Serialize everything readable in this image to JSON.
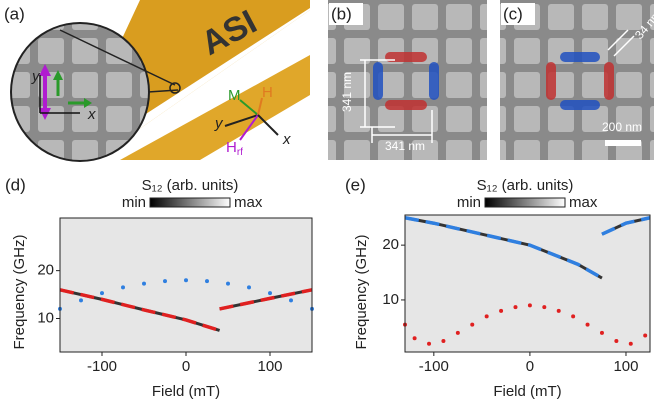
{
  "figure": {
    "a": {
      "label": "(a)",
      "sample": "ASI",
      "inset_y": "y",
      "inset_x": "x",
      "axis_y": "y",
      "axis_x": "x",
      "m": "M",
      "h": "H",
      "hrf_main": "H",
      "hrf_sub": "rf"
    },
    "b": {
      "label": "(b)",
      "dim_v": "341 nm",
      "dim_h": "341 nm"
    },
    "c": {
      "label": "(c)",
      "gap": "34 nm",
      "scale": "200 nm"
    }
  },
  "chart_data": [
    {
      "type": "scatter",
      "panel_label": "(d)",
      "colorbar_title": "S₁₂ (arb. units)",
      "colorbar_min": "min",
      "colorbar_max": "max",
      "xlabel": "Field (mT)",
      "ylabel": "Frequency (GHz)",
      "xlim": [
        -150,
        150
      ],
      "ylim": [
        3,
        31
      ],
      "xticks": [
        -100,
        0,
        100
      ],
      "yticks": [
        10,
        20
      ],
      "series": [
        {
          "style": "dots",
          "color": "#2f7fe0",
          "x": [
            -150,
            -125,
            -100,
            -75,
            -50,
            -25,
            0,
            25,
            50,
            75,
            100,
            125,
            150
          ],
          "values": [
            12,
            13.8,
            15.3,
            16.5,
            17.3,
            17.8,
            18,
            17.8,
            17.3,
            16.5,
            15.3,
            13.8,
            12
          ]
        },
        {
          "style": "dashes",
          "color": "#e02020",
          "x": [
            -150,
            -100,
            -50,
            0,
            40
          ],
          "values": [
            16,
            14,
            11.8,
            9.7,
            7.5
          ]
        },
        {
          "style": "dashes",
          "color": "#e02020",
          "x": [
            40,
            100,
            150
          ],
          "values": [
            12,
            14.2,
            16
          ]
        }
      ]
    },
    {
      "type": "scatter",
      "panel_label": "(e)",
      "colorbar_title": "S₁₂ (arb. units)",
      "colorbar_min": "min",
      "colorbar_max": "max",
      "xlabel": "Field (mT)",
      "ylabel": "Frequency (GHz)",
      "xlim": [
        -130,
        125
      ],
      "ylim": [
        0.5,
        25.5
      ],
      "xticks": [
        -100,
        0,
        100
      ],
      "yticks": [
        10,
        20
      ],
      "series": [
        {
          "style": "dashes",
          "color": "#2f7fe0",
          "x": [
            -130,
            -100,
            -50,
            0,
            50,
            75
          ],
          "values": [
            25,
            24,
            22,
            20,
            16.5,
            14
          ]
        },
        {
          "style": "dashes",
          "color": "#2f7fe0",
          "x": [
            75,
            100,
            125
          ],
          "values": [
            22,
            24,
            25
          ]
        },
        {
          "style": "dots",
          "color": "#e02020",
          "x": [
            -130,
            -120,
            -105,
            -90,
            -75,
            -60,
            -45,
            -30,
            -15,
            0,
            15,
            30,
            45,
            60,
            75,
            90,
            105,
            120
          ],
          "values": [
            5.5,
            3,
            2,
            2.5,
            4,
            5.5,
            7,
            8,
            8.7,
            9,
            8.7,
            8,
            7,
            5.5,
            4,
            2.5,
            2,
            3.5
          ]
        }
      ]
    }
  ]
}
